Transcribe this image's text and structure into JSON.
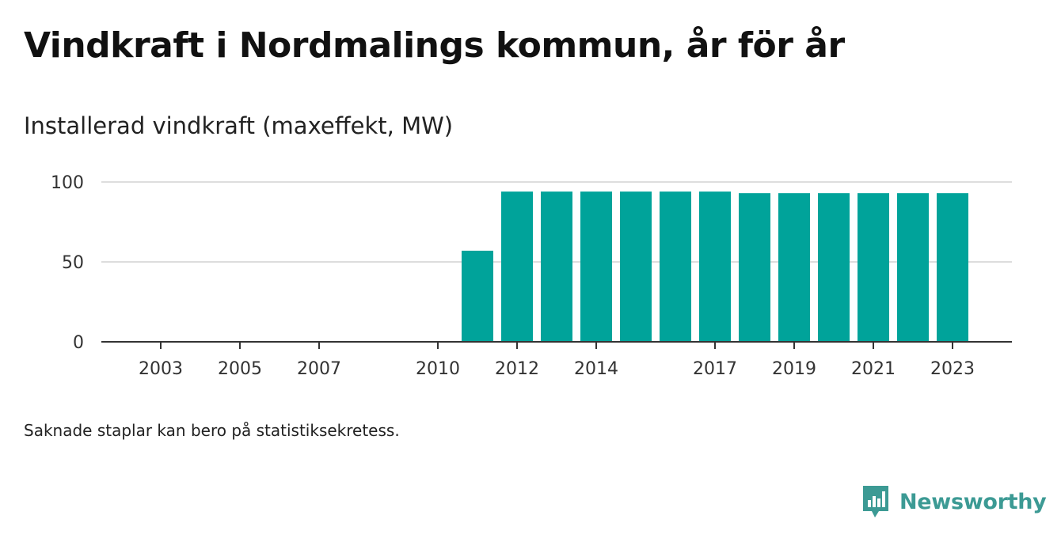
{
  "title": "Vindkraft i Nordmalings kommun, år för år",
  "subtitle": "Installerad vindkraft (maxeffekt, MW)",
  "footnote": "Saknade staplar kan bero på statistiksekretess.",
  "brand": {
    "name": "Newsworthy",
    "icon": "newsworthy-logo-icon",
    "color": "#3c9a94"
  },
  "colors": {
    "bar": "#00a39a",
    "grid": "#dddddd",
    "axis": "#333333"
  },
  "chart_data": {
    "type": "bar",
    "title": "Vindkraft i Nordmalings kommun, år för år",
    "subtitle": "Installerad vindkraft (maxeffekt, MW)",
    "xlabel": "",
    "ylabel": "",
    "ylim": [
      0,
      100
    ],
    "yticks": [
      "0",
      "50",
      "100"
    ],
    "xticks": [
      "2003",
      "2005",
      "2007",
      "2010",
      "2012",
      "2014",
      "2017",
      "2019",
      "2021",
      "2023"
    ],
    "x_range": [
      2001.5,
      2024.5
    ],
    "grid": true,
    "legend": "none",
    "categories": [
      "2011",
      "2012",
      "2013",
      "2014",
      "2015",
      "2016",
      "2017",
      "2018",
      "2019",
      "2020",
      "2021",
      "2022",
      "2023"
    ],
    "values": [
      57,
      94,
      94,
      94,
      94,
      94,
      94,
      93,
      93,
      93,
      93,
      93,
      93
    ]
  }
}
